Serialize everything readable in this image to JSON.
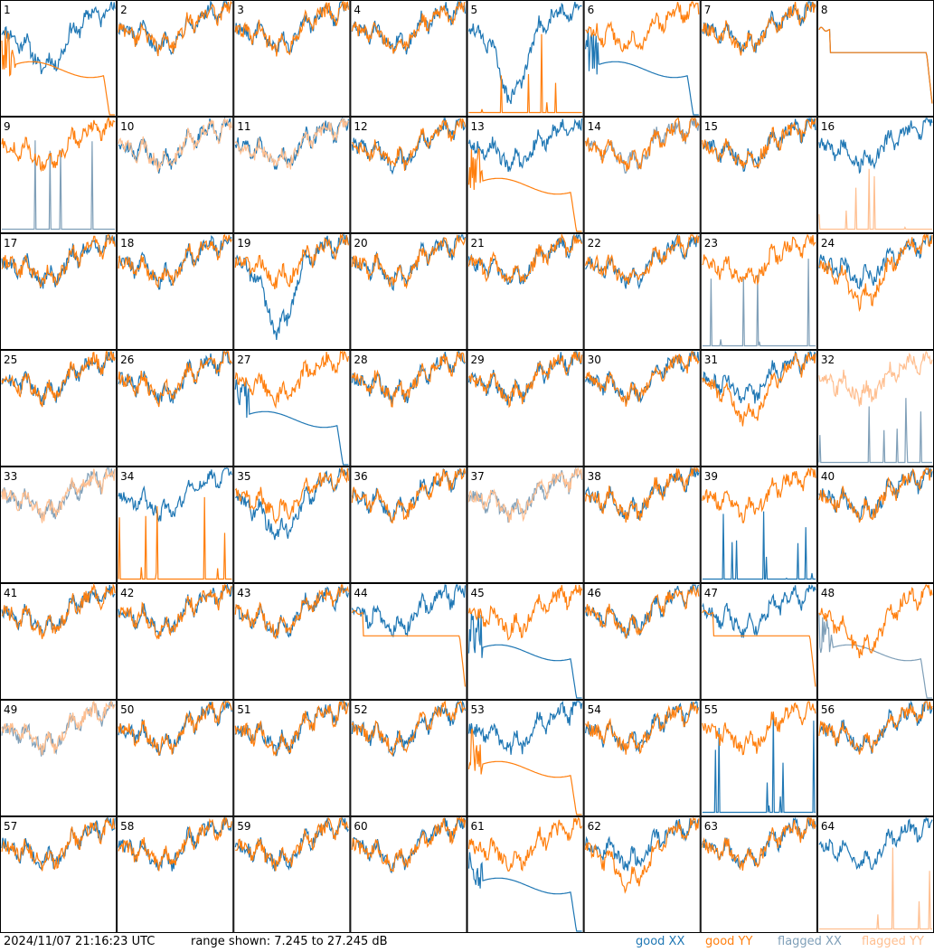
{
  "chart_data": {
    "type": "line",
    "layout": "8x8 small multiples",
    "y_range_db": [
      7.245,
      27.245
    ],
    "colors": {
      "good_xx": "#1f77b4",
      "good_yy": "#ff7f0e",
      "flagged_xx": "#7f9fb8",
      "flagged_yy": "#ffbf90"
    },
    "panels": [
      {
        "id": "1",
        "xx": "good",
        "yy": "good",
        "xx_shape": "dip",
        "yy_shape": "smooth_drop"
      },
      {
        "id": "2",
        "xx": "good",
        "yy": "good",
        "xx_shape": "normal",
        "yy_shape": "normal"
      },
      {
        "id": "3",
        "xx": "good",
        "yy": "good",
        "xx_shape": "normal",
        "yy_shape": "normal"
      },
      {
        "id": "4",
        "xx": "good",
        "yy": "good",
        "xx_shape": "normal",
        "yy_shape": "normal"
      },
      {
        "id": "5",
        "xx": "good",
        "yy": "good",
        "xx_shape": "deep_dip",
        "yy_shape": "spikes_low"
      },
      {
        "id": "6",
        "xx": "good",
        "yy": "good",
        "xx_shape": "smooth_drop",
        "yy_shape": "normal"
      },
      {
        "id": "7",
        "xx": "good",
        "yy": "good",
        "xx_shape": "normal",
        "yy_shape": "normal"
      },
      {
        "id": "8",
        "xx": "good",
        "yy": "good",
        "xx_shape": "flat",
        "yy_shape": "flat"
      },
      {
        "id": "9",
        "xx": "flagged",
        "yy": "good",
        "xx_shape": "spikes_low",
        "yy_shape": "normal"
      },
      {
        "id": "10",
        "xx": "good",
        "yy": "flagged",
        "xx_shape": "normal",
        "yy_shape": "normal"
      },
      {
        "id": "11",
        "xx": "good",
        "yy": "flagged",
        "xx_shape": "normal",
        "yy_shape": "normal"
      },
      {
        "id": "12",
        "xx": "good",
        "yy": "good",
        "xx_shape": "normal",
        "yy_shape": "normal"
      },
      {
        "id": "13",
        "xx": "good",
        "yy": "good",
        "xx_shape": "normal",
        "yy_shape": "smooth_drop"
      },
      {
        "id": "14",
        "xx": "flagged",
        "yy": "good",
        "xx_shape": "normal",
        "yy_shape": "normal"
      },
      {
        "id": "15",
        "xx": "good",
        "yy": "good",
        "xx_shape": "normal",
        "yy_shape": "normal"
      },
      {
        "id": "16",
        "xx": "good",
        "yy": "flagged",
        "xx_shape": "normal",
        "yy_shape": "spikes_low"
      },
      {
        "id": "17",
        "xx": "good",
        "yy": "good",
        "xx_shape": "normal",
        "yy_shape": "normal"
      },
      {
        "id": "18",
        "xx": "good",
        "yy": "good",
        "xx_shape": "normal",
        "yy_shape": "normal"
      },
      {
        "id": "19",
        "xx": "good",
        "yy": "good",
        "xx_shape": "deep_dip",
        "yy_shape": "normal"
      },
      {
        "id": "20",
        "xx": "good",
        "yy": "good",
        "xx_shape": "normal",
        "yy_shape": "normal"
      },
      {
        "id": "21",
        "xx": "good",
        "yy": "good",
        "xx_shape": "normal",
        "yy_shape": "normal"
      },
      {
        "id": "22",
        "xx": "good",
        "yy": "good",
        "xx_shape": "normal",
        "yy_shape": "normal"
      },
      {
        "id": "23",
        "xx": "flagged",
        "yy": "good",
        "xx_shape": "spikes_low",
        "yy_shape": "normal"
      },
      {
        "id": "24",
        "xx": "good",
        "yy": "good",
        "xx_shape": "normal",
        "yy_shape": "dip"
      },
      {
        "id": "25",
        "xx": "good",
        "yy": "good",
        "xx_shape": "normal",
        "yy_shape": "normal"
      },
      {
        "id": "26",
        "xx": "good",
        "yy": "good",
        "xx_shape": "normal",
        "yy_shape": "normal"
      },
      {
        "id": "27",
        "xx": "good",
        "yy": "good",
        "xx_shape": "smooth_drop",
        "yy_shape": "normal"
      },
      {
        "id": "28",
        "xx": "good",
        "yy": "good",
        "xx_shape": "normal",
        "yy_shape": "normal"
      },
      {
        "id": "29",
        "xx": "good",
        "yy": "good",
        "xx_shape": "normal",
        "yy_shape": "normal"
      },
      {
        "id": "30",
        "xx": "good",
        "yy": "good",
        "xx_shape": "normal",
        "yy_shape": "normal"
      },
      {
        "id": "31",
        "xx": "good",
        "yy": "good",
        "xx_shape": "normal",
        "yy_shape": "dip"
      },
      {
        "id": "32",
        "xx": "flagged",
        "yy": "flagged",
        "xx_shape": "spikes_low",
        "yy_shape": "normal"
      },
      {
        "id": "33",
        "xx": "flagged",
        "yy": "flagged",
        "xx_shape": "normal",
        "yy_shape": "normal"
      },
      {
        "id": "34",
        "xx": "good",
        "yy": "good",
        "xx_shape": "normal",
        "yy_shape": "spikes_low"
      },
      {
        "id": "35",
        "xx": "good",
        "yy": "good",
        "xx_shape": "dip",
        "yy_shape": "normal"
      },
      {
        "id": "36",
        "xx": "good",
        "yy": "good",
        "xx_shape": "normal",
        "yy_shape": "normal"
      },
      {
        "id": "37",
        "xx": "flagged",
        "yy": "flagged",
        "xx_shape": "normal",
        "yy_shape": "normal"
      },
      {
        "id": "38",
        "xx": "good",
        "yy": "good",
        "xx_shape": "normal",
        "yy_shape": "normal"
      },
      {
        "id": "39",
        "xx": "good",
        "yy": "good",
        "xx_shape": "spikes_low",
        "yy_shape": "normal"
      },
      {
        "id": "40",
        "xx": "good",
        "yy": "good",
        "xx_shape": "normal",
        "yy_shape": "normal"
      },
      {
        "id": "41",
        "xx": "good",
        "yy": "good",
        "xx_shape": "normal",
        "yy_shape": "normal"
      },
      {
        "id": "42",
        "xx": "good",
        "yy": "good",
        "xx_shape": "normal",
        "yy_shape": "normal"
      },
      {
        "id": "43",
        "xx": "good",
        "yy": "good",
        "xx_shape": "normal",
        "yy_shape": "normal"
      },
      {
        "id": "44",
        "xx": "good",
        "yy": "good",
        "xx_shape": "normal",
        "yy_shape": "flat"
      },
      {
        "id": "45",
        "xx": "good",
        "yy": "good",
        "xx_shape": "smooth_drop",
        "yy_shape": "normal"
      },
      {
        "id": "46",
        "xx": "good",
        "yy": "good",
        "xx_shape": "normal",
        "yy_shape": "normal"
      },
      {
        "id": "47",
        "xx": "good",
        "yy": "good",
        "xx_shape": "normal",
        "yy_shape": "flat"
      },
      {
        "id": "48",
        "xx": "flagged",
        "yy": "good",
        "xx_shape": "smooth_drop",
        "yy_shape": "dip"
      },
      {
        "id": "49",
        "xx": "flagged",
        "yy": "flagged",
        "xx_shape": "normal",
        "yy_shape": "normal"
      },
      {
        "id": "50",
        "xx": "good",
        "yy": "good",
        "xx_shape": "normal",
        "yy_shape": "normal"
      },
      {
        "id": "51",
        "xx": "good",
        "yy": "good",
        "xx_shape": "normal",
        "yy_shape": "normal"
      },
      {
        "id": "52",
        "xx": "good",
        "yy": "good",
        "xx_shape": "normal",
        "yy_shape": "normal"
      },
      {
        "id": "53",
        "xx": "good",
        "yy": "good",
        "xx_shape": "normal",
        "yy_shape": "smooth_drop"
      },
      {
        "id": "54",
        "xx": "good",
        "yy": "good",
        "xx_shape": "normal",
        "yy_shape": "normal"
      },
      {
        "id": "55",
        "xx": "good",
        "yy": "good",
        "xx_shape": "spikes_low",
        "yy_shape": "normal"
      },
      {
        "id": "56",
        "xx": "good",
        "yy": "good",
        "xx_shape": "normal",
        "yy_shape": "normal"
      },
      {
        "id": "57",
        "xx": "good",
        "yy": "good",
        "xx_shape": "normal",
        "yy_shape": "normal"
      },
      {
        "id": "58",
        "xx": "good",
        "yy": "good",
        "xx_shape": "normal",
        "yy_shape": "normal"
      },
      {
        "id": "59",
        "xx": "good",
        "yy": "good",
        "xx_shape": "normal",
        "yy_shape": "normal"
      },
      {
        "id": "60",
        "xx": "good",
        "yy": "good",
        "xx_shape": "normal",
        "yy_shape": "normal"
      },
      {
        "id": "61",
        "xx": "good",
        "yy": "good",
        "xx_shape": "smooth_drop",
        "yy_shape": "normal"
      },
      {
        "id": "62",
        "xx": "good",
        "yy": "good",
        "xx_shape": "normal",
        "yy_shape": "dip"
      },
      {
        "id": "63",
        "xx": "good",
        "yy": "good",
        "xx_shape": "normal",
        "yy_shape": "normal"
      },
      {
        "id": "64",
        "xx": "good",
        "yy": "flagged",
        "xx_shape": "normal",
        "yy_shape": "spikes_low"
      }
    ]
  },
  "footer": {
    "timestamp": "2024/11/07 21:16:23 UTC",
    "range": "range shown: 7.245 to 27.245 dB",
    "legend": {
      "good_xx": "good XX",
      "good_yy": "good YY",
      "flagged_xx": "flagged XX",
      "flagged_yy": "flagged YY"
    }
  }
}
